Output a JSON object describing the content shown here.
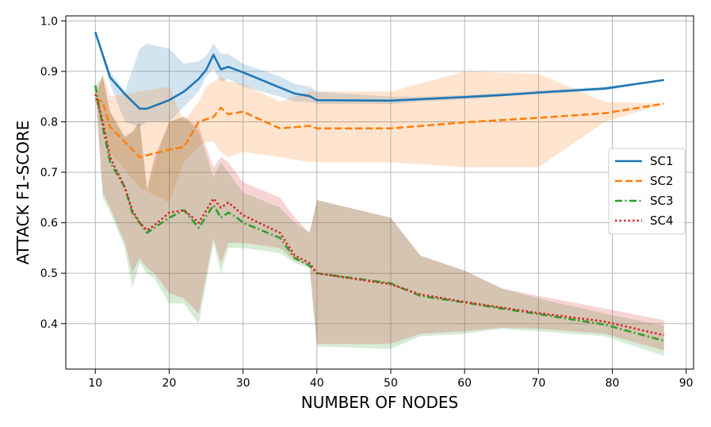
{
  "chart_data": {
    "type": "line",
    "title": "",
    "xlabel": "NUMBER OF NODES",
    "ylabel": "ATTACK F1-SCORE",
    "xlim": [
      6,
      91
    ],
    "ylim": [
      0.31,
      1.01
    ],
    "xticks": [
      10,
      20,
      30,
      40,
      50,
      60,
      70,
      80,
      90
    ],
    "yticks": [
      0.4,
      0.5,
      0.6,
      0.7,
      0.8,
      0.9,
      1.0
    ],
    "xtick_labels": [
      "10",
      "20",
      "30",
      "40",
      "50",
      "60",
      "70",
      "80",
      "90"
    ],
    "ytick_labels": [
      "0.4",
      "0.5",
      "0.6",
      "0.7",
      "0.8",
      "0.9",
      "1.0"
    ],
    "grid": true,
    "legend_position": "right",
    "series": [
      {
        "name": "SC1",
        "color": "#1f77b4",
        "dash": "solid",
        "x": [
          10,
          12,
          14,
          16,
          17,
          20,
          22,
          24,
          25,
          26,
          27,
          28,
          30,
          35,
          37,
          39,
          40,
          50,
          54,
          60,
          65,
          70,
          79,
          87
        ],
        "y": [
          0.978,
          0.888,
          0.855,
          0.826,
          0.826,
          0.843,
          0.86,
          0.885,
          0.903,
          0.933,
          0.904,
          0.909,
          0.898,
          0.868,
          0.856,
          0.851,
          0.843,
          0.842,
          0.845,
          0.849,
          0.853,
          0.858,
          0.866,
          0.883
        ],
        "lower": [
          0.978,
          0.875,
          0.8,
          0.79,
          0.8,
          0.8,
          0.83,
          0.86,
          0.89,
          0.905,
          0.88,
          0.885,
          0.87,
          0.85,
          0.84,
          0.84,
          0.835,
          0.835,
          0.84,
          0.845,
          0.85,
          0.855,
          0.862,
          0.883
        ],
        "upper": [
          0.978,
          0.9,
          0.86,
          0.945,
          0.955,
          0.945,
          0.915,
          0.92,
          0.93,
          0.955,
          0.935,
          0.935,
          0.915,
          0.89,
          0.875,
          0.87,
          0.86,
          0.85,
          0.85,
          0.853,
          0.857,
          0.862,
          0.87,
          0.883
        ]
      },
      {
        "name": "SC2",
        "color": "#ff7f0e",
        "dash": "dashed",
        "x": [
          10,
          11,
          12,
          16,
          20,
          22,
          24,
          25,
          26,
          27,
          28,
          30,
          35,
          39,
          40,
          50,
          60,
          70,
          79,
          87
        ],
        "y": [
          0.845,
          0.84,
          0.79,
          0.73,
          0.745,
          0.75,
          0.8,
          0.805,
          0.81,
          0.828,
          0.815,
          0.82,
          0.787,
          0.792,
          0.787,
          0.787,
          0.799,
          0.808,
          0.817,
          0.836
        ],
        "lower": [
          0.845,
          0.79,
          0.74,
          0.67,
          0.64,
          0.72,
          0.75,
          0.76,
          0.76,
          0.74,
          0.73,
          0.74,
          0.73,
          0.72,
          0.72,
          0.72,
          0.71,
          0.71,
          0.8,
          0.836
        ],
        "upper": [
          0.845,
          0.895,
          0.85,
          0.86,
          0.87,
          0.8,
          0.84,
          0.87,
          0.88,
          0.89,
          0.88,
          0.875,
          0.84,
          0.86,
          0.86,
          0.86,
          0.9,
          0.895,
          0.84,
          0.836
        ]
      },
      {
        "name": "SC3",
        "color": "#2ca02c",
        "dash": "dashdot",
        "x": [
          10,
          11,
          12,
          14,
          15,
          16,
          17,
          18,
          20,
          22,
          24,
          26,
          27,
          28,
          29,
          30,
          35,
          37,
          39,
          40,
          50,
          54,
          60,
          65,
          70,
          79,
          87
        ],
        "y": [
          0.872,
          0.79,
          0.72,
          0.67,
          0.62,
          0.6,
          0.58,
          0.59,
          0.61,
          0.625,
          0.59,
          0.635,
          0.61,
          0.62,
          0.612,
          0.6,
          0.57,
          0.53,
          0.515,
          0.5,
          0.48,
          0.455,
          0.442,
          0.43,
          0.419,
          0.398,
          0.366
        ],
        "lower": [
          0.872,
          0.65,
          0.62,
          0.55,
          0.47,
          0.52,
          0.5,
          0.49,
          0.44,
          0.44,
          0.4,
          0.56,
          0.5,
          0.55,
          0.55,
          0.55,
          0.54,
          0.52,
          0.51,
          0.355,
          0.35,
          0.375,
          0.38,
          0.39,
          0.385,
          0.375,
          0.336
        ],
        "upper": [
          0.872,
          0.89,
          0.82,
          0.77,
          0.78,
          0.8,
          0.66,
          0.72,
          0.8,
          0.81,
          0.78,
          0.69,
          0.72,
          0.7,
          0.68,
          0.66,
          0.63,
          0.6,
          0.58,
          0.645,
          0.61,
          0.535,
          0.505,
          0.47,
          0.45,
          0.42,
          0.396
        ]
      },
      {
        "name": "SC4",
        "color": "#d62728",
        "dash": "dotted",
        "x": [
          10,
          11,
          12,
          14,
          15,
          16,
          17,
          18,
          20,
          22,
          24,
          26,
          27,
          28,
          29,
          30,
          35,
          37,
          39,
          40,
          50,
          54,
          60,
          65,
          70,
          79,
          87
        ],
        "y": [
          0.855,
          0.8,
          0.73,
          0.67,
          0.625,
          0.6,
          0.585,
          0.595,
          0.62,
          0.625,
          0.6,
          0.648,
          0.63,
          0.64,
          0.628,
          0.615,
          0.58,
          0.535,
          0.52,
          0.5,
          0.478,
          0.458,
          0.443,
          0.432,
          0.421,
          0.404,
          0.377
        ],
        "lower": [
          0.855,
          0.66,
          0.63,
          0.56,
          0.5,
          0.53,
          0.51,
          0.5,
          0.46,
          0.45,
          0.42,
          0.57,
          0.52,
          0.56,
          0.56,
          0.56,
          0.55,
          0.525,
          0.515,
          0.36,
          0.36,
          0.38,
          0.385,
          0.392,
          0.39,
          0.38,
          0.347
        ],
        "upper": [
          0.855,
          0.89,
          0.82,
          0.77,
          0.78,
          0.8,
          0.67,
          0.73,
          0.8,
          0.81,
          0.79,
          0.71,
          0.73,
          0.72,
          0.7,
          0.68,
          0.65,
          0.61,
          0.58,
          0.645,
          0.61,
          0.535,
          0.505,
          0.47,
          0.455,
          0.43,
          0.407
        ]
      }
    ]
  }
}
